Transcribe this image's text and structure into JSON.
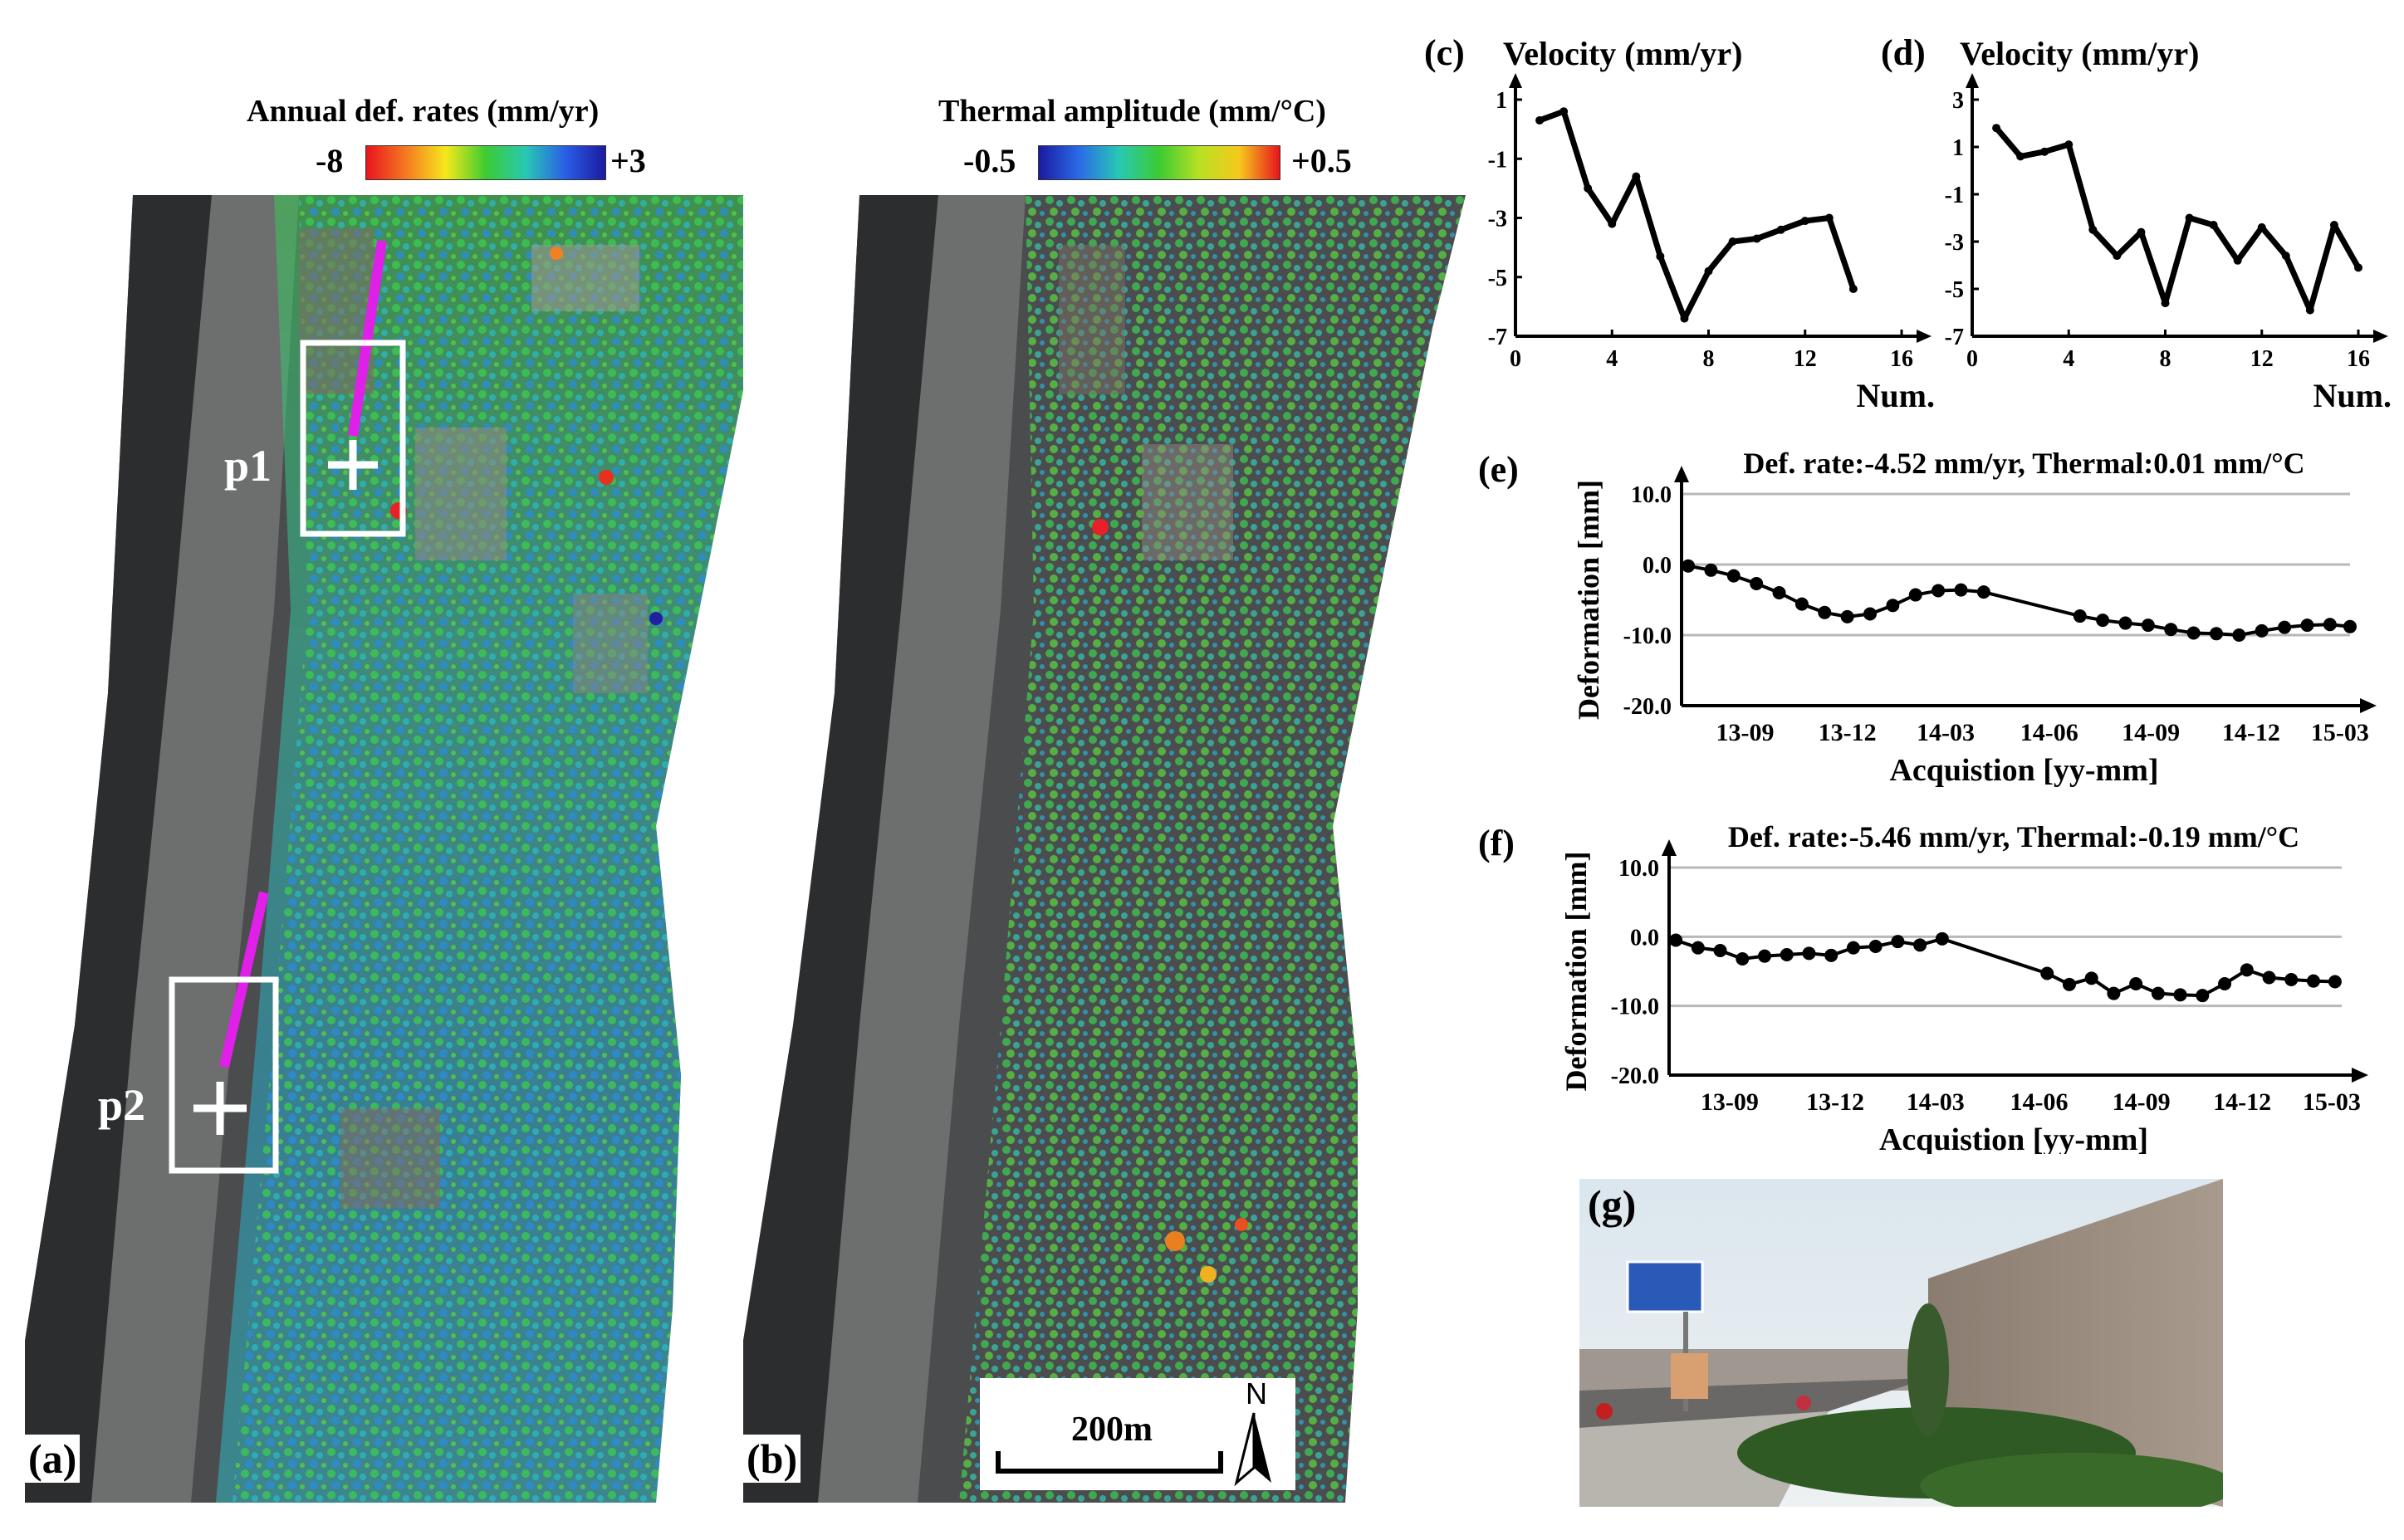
{
  "figure": {
    "panel_a": {
      "label": "(a)",
      "colorbar": {
        "title": "Annual def. rates (mm/yr)",
        "min_label": "-8",
        "max_label": "+3",
        "colors": [
          "#e8141e",
          "#f47a20",
          "#f6e81c",
          "#3ccb32",
          "#28c8b4",
          "#2a5ee6",
          "#1a1aa0"
        ]
      },
      "points": [
        {
          "label": "p1"
        },
        {
          "label": "p2"
        }
      ],
      "profile_color": "#e020e8"
    },
    "panel_b": {
      "label": "(b)",
      "colorbar": {
        "title": "Thermal amplitude (mm/°C)",
        "min_label": "-0.5",
        "max_label": "+0.5",
        "colors": [
          "#1a1aa0",
          "#2a6ae6",
          "#28c8b4",
          "#3ccb32",
          "#b8e024",
          "#f6c81c",
          "#e8141e"
        ]
      },
      "scale_label": "200m",
      "north_label": "N"
    },
    "panel_g": {
      "label": "(g)"
    }
  },
  "chart_data": [
    {
      "id": "c",
      "label": "(c)",
      "type": "line",
      "title": "Velocity (mm/yr)",
      "xlabel": "Num.",
      "ylabel": "",
      "xlim": [
        0,
        16
      ],
      "ylim": [
        -7,
        1
      ],
      "xticks": [
        0,
        4,
        8,
        12,
        16
      ],
      "yticks": [
        1,
        -1,
        -3,
        -5,
        -7
      ],
      "x": [
        1,
        2,
        3,
        4,
        5,
        6,
        7,
        8,
        9,
        10,
        11,
        12,
        13,
        14
      ],
      "y": [
        0.3,
        0.6,
        -2.0,
        -3.2,
        -1.6,
        -4.3,
        -6.4,
        -4.8,
        -3.8,
        -3.7,
        -3.4,
        -3.1,
        -3.0,
        -5.4
      ]
    },
    {
      "id": "d",
      "label": "(d)",
      "type": "line",
      "title": "Velocity (mm/yr)",
      "xlabel": "Num.",
      "ylabel": "",
      "xlim": [
        0,
        16
      ],
      "ylim": [
        -7,
        3
      ],
      "xticks": [
        0,
        4,
        8,
        12,
        16
      ],
      "yticks": [
        3,
        1,
        -1,
        -3,
        -5,
        -7
      ],
      "x": [
        1,
        2,
        3,
        4,
        5,
        6,
        7,
        8,
        9,
        10,
        11,
        12,
        13,
        14,
        15,
        16
      ],
      "y": [
        1.8,
        0.6,
        0.8,
        1.1,
        -2.5,
        -3.6,
        -2.6,
        -5.6,
        -2.0,
        -2.3,
        -3.8,
        -2.4,
        -3.6,
        -5.9,
        -2.3,
        -4.1
      ]
    },
    {
      "id": "e",
      "label": "(e)",
      "type": "line",
      "title": "Def. rate:-4.52 mm/yr, Thermal:0.01 mm/°C",
      "xlabel": "Acquistion [yy-mm]",
      "ylabel": "Deformation [mm]",
      "xlim": [
        0,
        100
      ],
      "ylim": [
        -20,
        10
      ],
      "ytick_labels": [
        "10.0",
        "0.0",
        "-10.0",
        "-20.0"
      ],
      "yticks": [
        10,
        0,
        -10,
        -20
      ],
      "xtick_labels": [
        "13-09",
        "13-12",
        "14-03",
        "14-06",
        "14-09",
        "14-12",
        "15-03"
      ],
      "xtick_positions": [
        9.5,
        24.8,
        39.5,
        55.0,
        70.2,
        85.2,
        98.5
      ],
      "x": [
        1.0,
        4.4,
        7.8,
        11.2,
        14.6,
        18.0,
        21.4,
        24.8,
        28.2,
        31.6,
        35.0,
        38.4,
        41.8,
        45.2,
        59.6,
        63.0,
        66.4,
        69.8,
        73.2,
        76.6,
        80.0,
        83.4,
        86.8,
        90.2,
        93.6,
        97.0,
        100.0
      ],
      "y": [
        -0.2,
        -0.8,
        -1.6,
        -2.7,
        -4.0,
        -5.6,
        -6.8,
        -7.4,
        -7.0,
        -5.8,
        -4.3,
        -3.7,
        -3.6,
        -3.9,
        -7.3,
        -7.9,
        -8.3,
        -8.6,
        -9.2,
        -9.7,
        -9.8,
        -10.0,
        -9.4,
        -8.9,
        -8.6,
        -8.5,
        -8.8
      ]
    },
    {
      "id": "f",
      "label": "(f)",
      "type": "line",
      "title": "Def. rate:-5.46 mm/yr, Thermal:-0.19 mm/°C",
      "xlabel": "Acquistion [yy-mm]",
      "ylabel": "Deformation [mm]",
      "xlim": [
        0,
        100
      ],
      "ylim": [
        -20,
        10
      ],
      "ytick_labels": [
        "10.0",
        "0.0",
        "-10.0",
        "-20.0"
      ],
      "yticks": [
        10,
        0,
        -10,
        -20
      ],
      "xtick_labels": [
        "13-09",
        "13-12",
        "14-03",
        "14-06",
        "14-09",
        "14-12",
        "15-03"
      ],
      "xtick_positions": [
        9.0,
        24.7,
        39.6,
        55.0,
        70.2,
        85.2,
        98.5
      ],
      "x": [
        1.0,
        4.3,
        7.6,
        10.9,
        14.2,
        17.5,
        20.8,
        24.1,
        27.4,
        30.7,
        34.0,
        37.3,
        40.6,
        56.2,
        59.5,
        62.8,
        66.1,
        69.4,
        72.7,
        76.0,
        79.3,
        82.6,
        85.9,
        89.2,
        92.5,
        95.8,
        99.0
      ],
      "y": [
        -0.5,
        -1.6,
        -2.0,
        -3.2,
        -2.8,
        -2.6,
        -2.4,
        -2.7,
        -1.6,
        -1.4,
        -0.7,
        -1.2,
        -0.3,
        -5.3,
        -6.9,
        -6.0,
        -8.2,
        -6.8,
        -8.2,
        -8.4,
        -8.5,
        -6.8,
        -4.8,
        -5.9,
        -6.2,
        -6.4,
        -6.5
      ]
    }
  ]
}
